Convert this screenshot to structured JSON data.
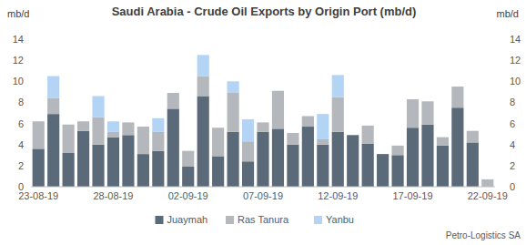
{
  "chart_data": {
    "type": "bar",
    "stacked": true,
    "title": "Saudi Arabia - Crude Oil Exports by Origin Port (mb/d)",
    "y_label": "mb/d",
    "y2_label": "mb/d",
    "source": "Petro-Logistics SA",
    "legend": "bottom",
    "categories": [
      "23-08-19",
      null,
      null,
      null,
      null,
      "28-08-19",
      null,
      null,
      null,
      null,
      "02-09-19",
      null,
      null,
      null,
      null,
      "07-09-19",
      null,
      null,
      null,
      null,
      "12-09-19",
      null,
      null,
      null,
      null,
      "17-09-19",
      null,
      null,
      null,
      null,
      "22-09-19"
    ],
    "series": [
      {
        "name": "Juaymah",
        "color": "#5b6a78",
        "values": [
          3.6,
          6.9,
          3.2,
          5.3,
          4.0,
          4.7,
          4.9,
          3.1,
          3.4,
          7.4,
          1.9,
          8.6,
          2.9,
          5.2,
          2.4,
          5.2,
          5.5,
          4.0,
          5.7,
          4.0,
          5.2,
          4.9,
          4.1,
          3.1,
          3.0,
          5.6,
          5.9,
          3.9,
          7.5,
          4.2,
          0
        ]
      },
      {
        "name": "Ras Tanura",
        "color": "#b4b8bc",
        "values": [
          2.6,
          1.5,
          2.7,
          0.9,
          2.6,
          0.5,
          1.2,
          2.6,
          1.8,
          1.5,
          1.5,
          1.9,
          2.7,
          3.7,
          1.9,
          0.9,
          3.6,
          1.1,
          1.0,
          0.5,
          3.3,
          0,
          1.7,
          0,
          0.9,
          2.7,
          2.2,
          0.8,
          2.0,
          1.1,
          0.7
        ]
      },
      {
        "name": "Yanbu",
        "color": "#b3d4f5",
        "values": [
          0,
          2.1,
          0,
          0,
          2.0,
          1.0,
          0,
          0,
          1.3,
          0,
          0,
          2.0,
          0,
          1.1,
          2.1,
          0,
          0,
          0,
          0,
          2.4,
          2.1,
          0,
          0,
          0,
          0,
          0,
          0,
          0,
          0,
          0,
          0
        ]
      }
    ],
    "ylim": [
      0,
      14
    ],
    "yticks": [
      0,
      2,
      4,
      6,
      8,
      10,
      12,
      14
    ],
    "y2lim": [
      0,
      14
    ],
    "y2ticks": [
      0,
      2,
      4,
      6,
      8,
      10,
      12,
      14
    ]
  }
}
